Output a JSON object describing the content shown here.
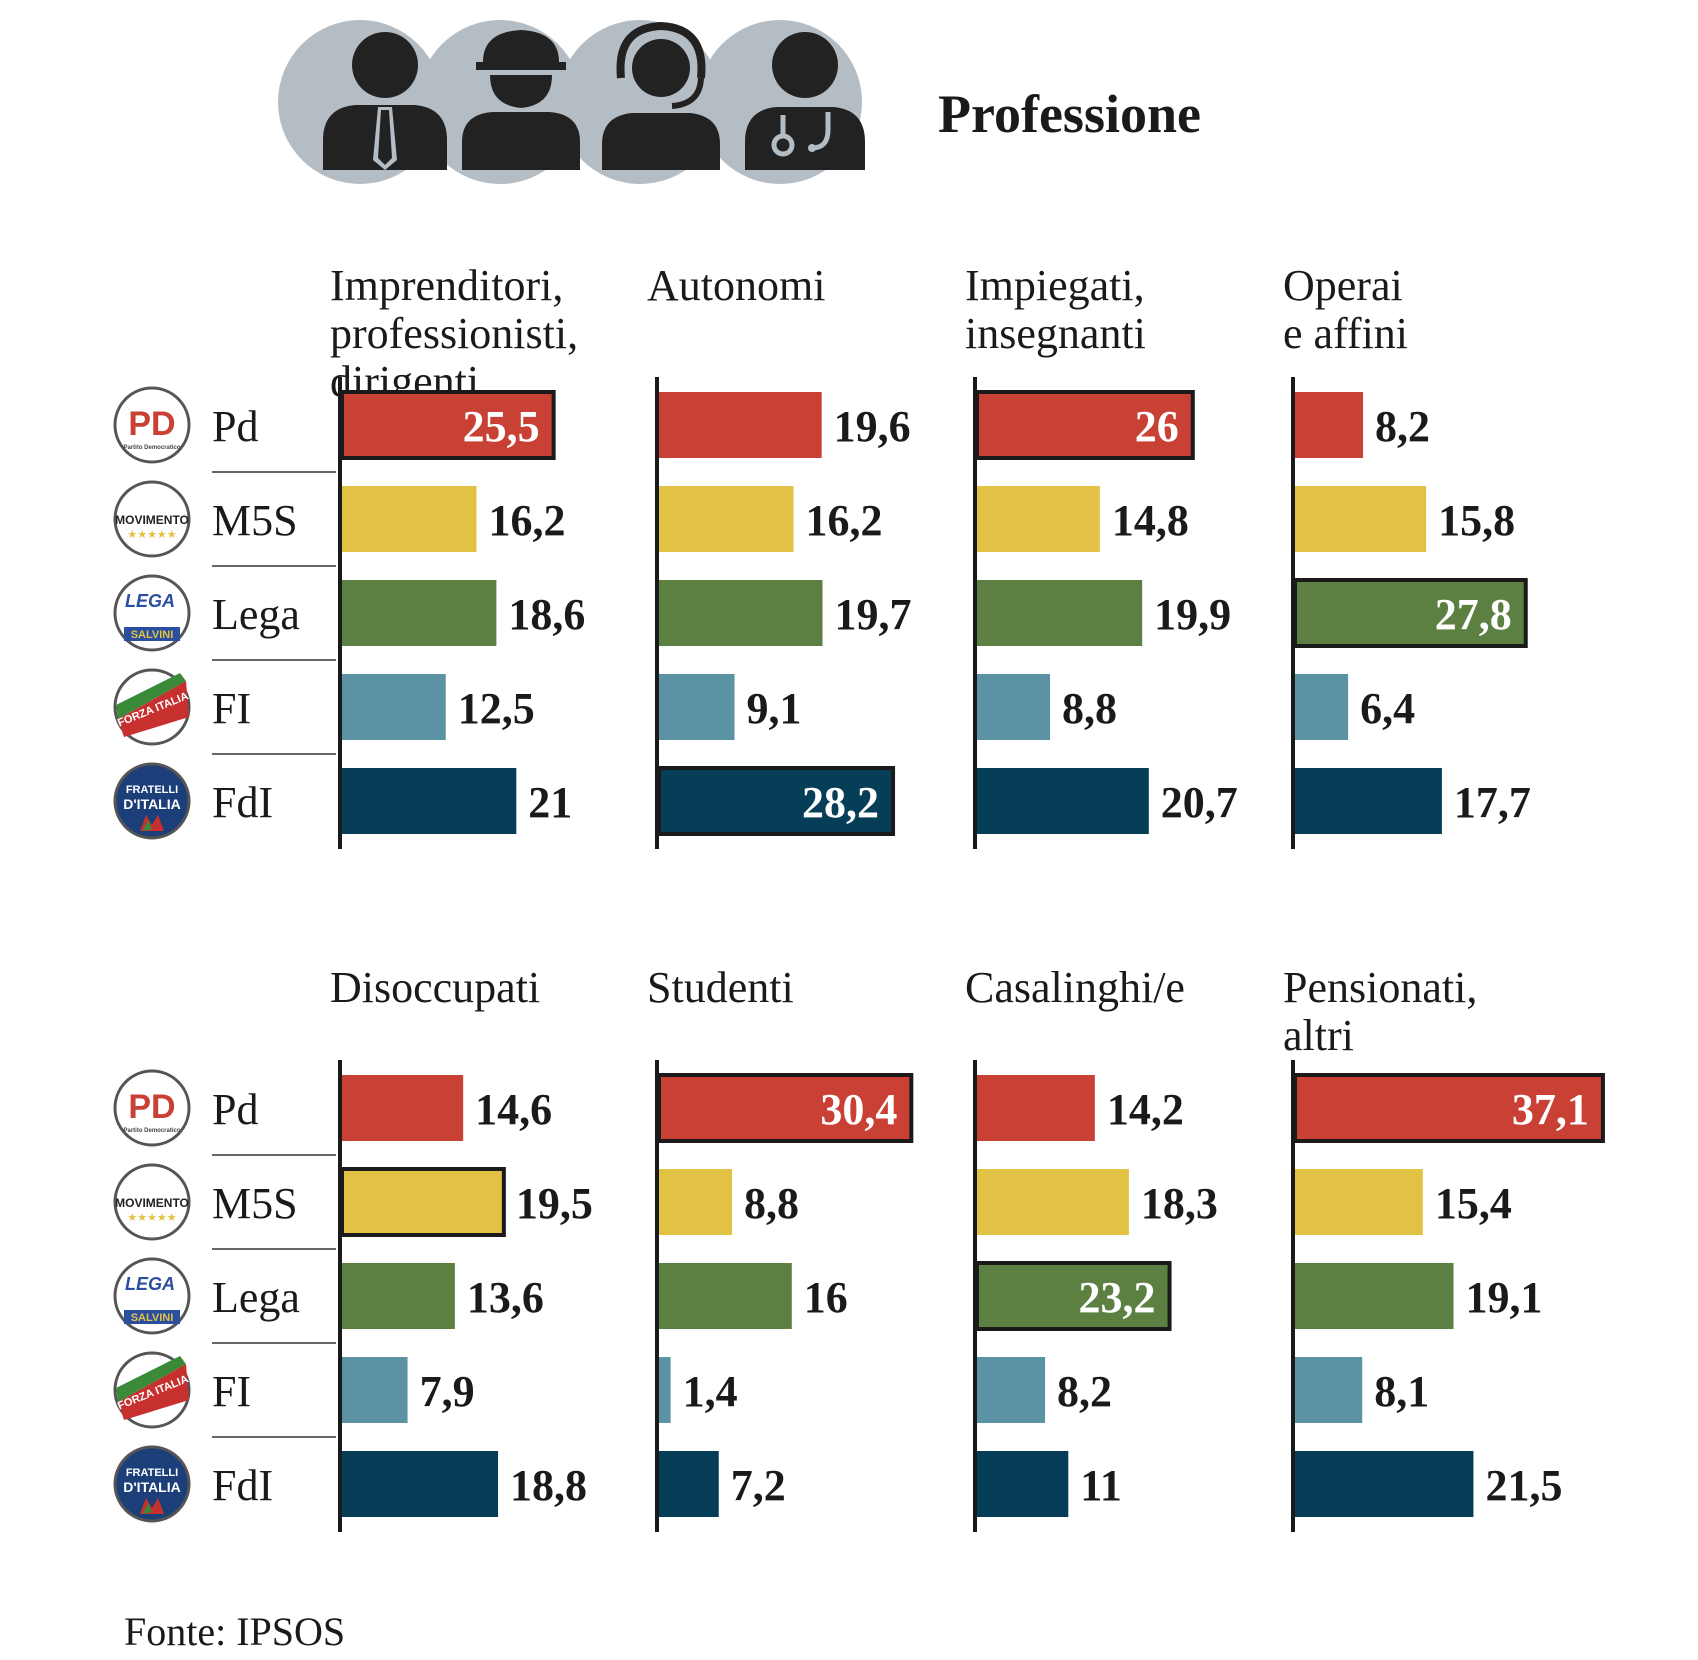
{
  "title": "Professione",
  "source": "Fonte: IPSOS",
  "icons": [
    "businessman-icon",
    "worker-helmet-icon",
    "call-center-icon",
    "doctor-icon"
  ],
  "party_logos": [
    {
      "party": "Pd",
      "text": "PD",
      "sub": "Partito Democratico"
    },
    {
      "party": "M5S",
      "text": "MOVIMENTO"
    },
    {
      "party": "Lega",
      "text": "LEGA",
      "sub": "SALVINI"
    },
    {
      "party": "FI",
      "text": "FORZA ITALIA"
    },
    {
      "party": "FdI",
      "text": "FRATELLI D'ITALIA"
    }
  ],
  "chart_data": {
    "type": "bar",
    "orientation": "horizontal",
    "title": "Professione",
    "parties": [
      "Pd",
      "M5S",
      "Lega",
      "FI",
      "FdI"
    ],
    "colors": {
      "Pd": "#c94135",
      "M5S": "#e2c244",
      "Lega": "#5b8042",
      "FI": "#5b93a4",
      "FdI": "#063e58"
    },
    "xlim": [
      0,
      40
    ],
    "groups": [
      {
        "label": [
          "Imprenditori,",
          "professionisti,",
          "dirigenti"
        ],
        "values": [
          25.5,
          16.2,
          18.6,
          12.5,
          21.0
        ],
        "labels": [
          "25,5",
          "16,2",
          "18,6",
          "12,5",
          "21"
        ],
        "highlight": "Pd"
      },
      {
        "label": [
          "Autonomi"
        ],
        "values": [
          19.6,
          16.2,
          19.7,
          9.1,
          28.2
        ],
        "labels": [
          "19,6",
          "16,2",
          "19,7",
          "9,1",
          "28,2"
        ],
        "highlight": "FdI"
      },
      {
        "label": [
          "Impiegati,",
          "insegnanti"
        ],
        "values": [
          26.0,
          14.8,
          19.9,
          8.8,
          20.7
        ],
        "labels": [
          "26",
          "14,8",
          "19,9",
          "8,8",
          "20,7"
        ],
        "highlight": "Pd"
      },
      {
        "label": [
          "Operai",
          "e affini"
        ],
        "values": [
          8.2,
          15.8,
          27.8,
          6.4,
          17.7
        ],
        "labels": [
          "8,2",
          "15,8",
          "27,8",
          "6,4",
          "17,7"
        ],
        "highlight": "Lega"
      },
      {
        "label": [
          "Disoccupati"
        ],
        "values": [
          14.6,
          19.5,
          13.6,
          7.9,
          18.8
        ],
        "labels": [
          "14,6",
          "19,5",
          "13,6",
          "7,9",
          "18,8"
        ],
        "highlight": "M5S"
      },
      {
        "label": [
          "Studenti"
        ],
        "values": [
          30.4,
          8.8,
          16.0,
          1.4,
          7.2
        ],
        "labels": [
          "30,4",
          "8,8",
          "16",
          "1,4",
          "7,2"
        ],
        "highlight": "Pd"
      },
      {
        "label": [
          "Casalinghi/e"
        ],
        "values": [
          14.2,
          18.3,
          23.2,
          8.2,
          11.0
        ],
        "labels": [
          "14,2",
          "18,3",
          "23,2",
          "8,2",
          "11"
        ],
        "highlight": "Lega"
      },
      {
        "label": [
          "Pensionati,",
          "altri"
        ],
        "values": [
          37.1,
          15.4,
          19.1,
          8.1,
          21.5
        ],
        "labels": [
          "37,1",
          "15,4",
          "19,1",
          "8,1",
          "21,5"
        ],
        "highlight": "Pd"
      }
    ]
  }
}
